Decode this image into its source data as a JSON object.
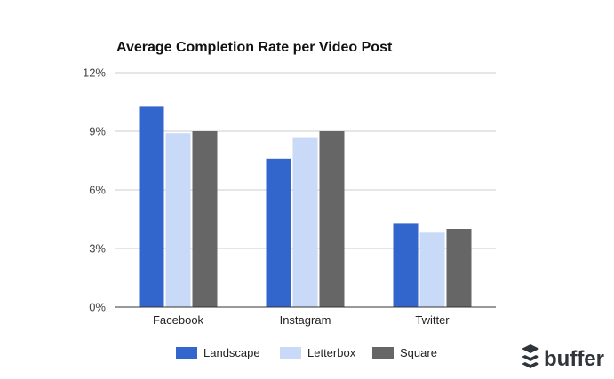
{
  "chart_data": {
    "type": "bar",
    "title": "Average Completion Rate per Video Post",
    "xlabel": "",
    "ylabel": "",
    "categories": [
      "Facebook",
      "Instagram",
      "Twitter"
    ],
    "series": [
      {
        "name": "Landscape",
        "color": "#3366cc",
        "values": [
          10.3,
          7.6,
          4.3
        ]
      },
      {
        "name": "Letterbox",
        "color": "#c9daf8",
        "values": [
          8.9,
          8.7,
          3.85
        ]
      },
      {
        "name": "Square",
        "color": "#666666",
        "values": [
          9.0,
          9.0,
          4.0
        ]
      }
    ],
    "ylim": [
      0,
      12
    ],
    "yticks": [
      "0%",
      "3%",
      "6%",
      "9%",
      "12%"
    ],
    "grid": true,
    "legend_position": "bottom"
  },
  "brand": {
    "name": "buffer",
    "icon": "buffer-stack-icon"
  }
}
